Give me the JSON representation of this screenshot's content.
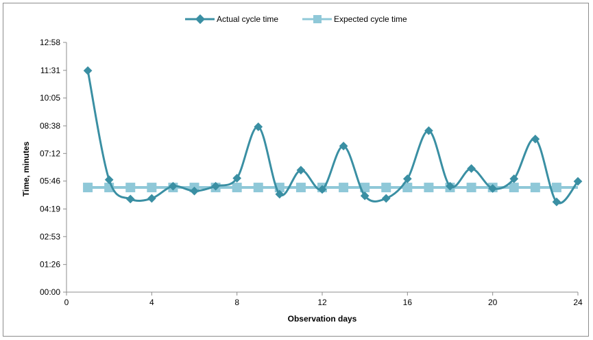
{
  "chart_data": {
    "type": "line",
    "title": "",
    "xlabel": "Observation days",
    "ylabel": "Time, minutes",
    "xlim": [
      0,
      24
    ],
    "x_ticks": [
      "0",
      "4",
      "8",
      "12",
      "16",
      "20",
      "24"
    ],
    "x_tick_values": [
      0,
      4,
      8,
      12,
      16,
      20,
      24
    ],
    "ylim_seconds": [
      0,
      778
    ],
    "y_ticks": [
      "00:00",
      "01:26",
      "02:53",
      "04:19",
      "05:46",
      "07:12",
      "08:38",
      "10:05",
      "11:31",
      "12:58"
    ],
    "y_tick_values": [
      0,
      86,
      173,
      259,
      346,
      432,
      518,
      605,
      691,
      778
    ],
    "grid": false,
    "legend_position": "top",
    "series": [
      {
        "name": "Actual cycle time",
        "color": "#3a8fa3",
        "marker": "diamond",
        "smooth": true,
        "x": [
          1,
          2,
          3,
          4,
          5,
          6,
          7,
          8,
          9,
          10,
          11,
          12,
          13,
          14,
          15,
          16,
          17,
          18,
          19,
          20,
          21,
          22,
          23,
          24
        ],
        "y_seconds": [
          690,
          350,
          290,
          292,
          330,
          315,
          330,
          355,
          515,
          305,
          380,
          320,
          455,
          300,
          292,
          353,
          503,
          330,
          385,
          323,
          353,
          477,
          281,
          345
        ],
        "y_labels": [
          "11:30",
          "05:50",
          "04:50",
          "04:52",
          "05:30",
          "05:15",
          "05:30",
          "05:55",
          "08:35",
          "05:05",
          "06:20",
          "05:20",
          "07:35",
          "05:00",
          "04:52",
          "05:53",
          "08:23",
          "05:30",
          "06:25",
          "05:23",
          "05:53",
          "07:57",
          "04:41",
          "05:45"
        ]
      },
      {
        "name": "Expected cycle time",
        "color": "#8fc8d8",
        "marker": "square",
        "smooth": false,
        "x": [
          1,
          2,
          3,
          4,
          5,
          6,
          7,
          8,
          9,
          10,
          11,
          12,
          13,
          14,
          15,
          16,
          17,
          18,
          19,
          20,
          21,
          22,
          23
        ],
        "y_seconds": [
          326,
          326,
          326,
          326,
          326,
          326,
          326,
          326,
          326,
          326,
          326,
          326,
          326,
          326,
          326,
          326,
          326,
          326,
          326,
          326,
          326,
          326,
          326
        ],
        "y_labels": [
          "05:26",
          "05:26",
          "05:26",
          "05:26",
          "05:26",
          "05:26",
          "05:26",
          "05:26",
          "05:26",
          "05:26",
          "05:26",
          "05:26",
          "05:26",
          "05:26",
          "05:26",
          "05:26",
          "05:26",
          "05:26",
          "05:26",
          "05:26",
          "05:26",
          "05:26",
          "05:26"
        ]
      }
    ]
  }
}
